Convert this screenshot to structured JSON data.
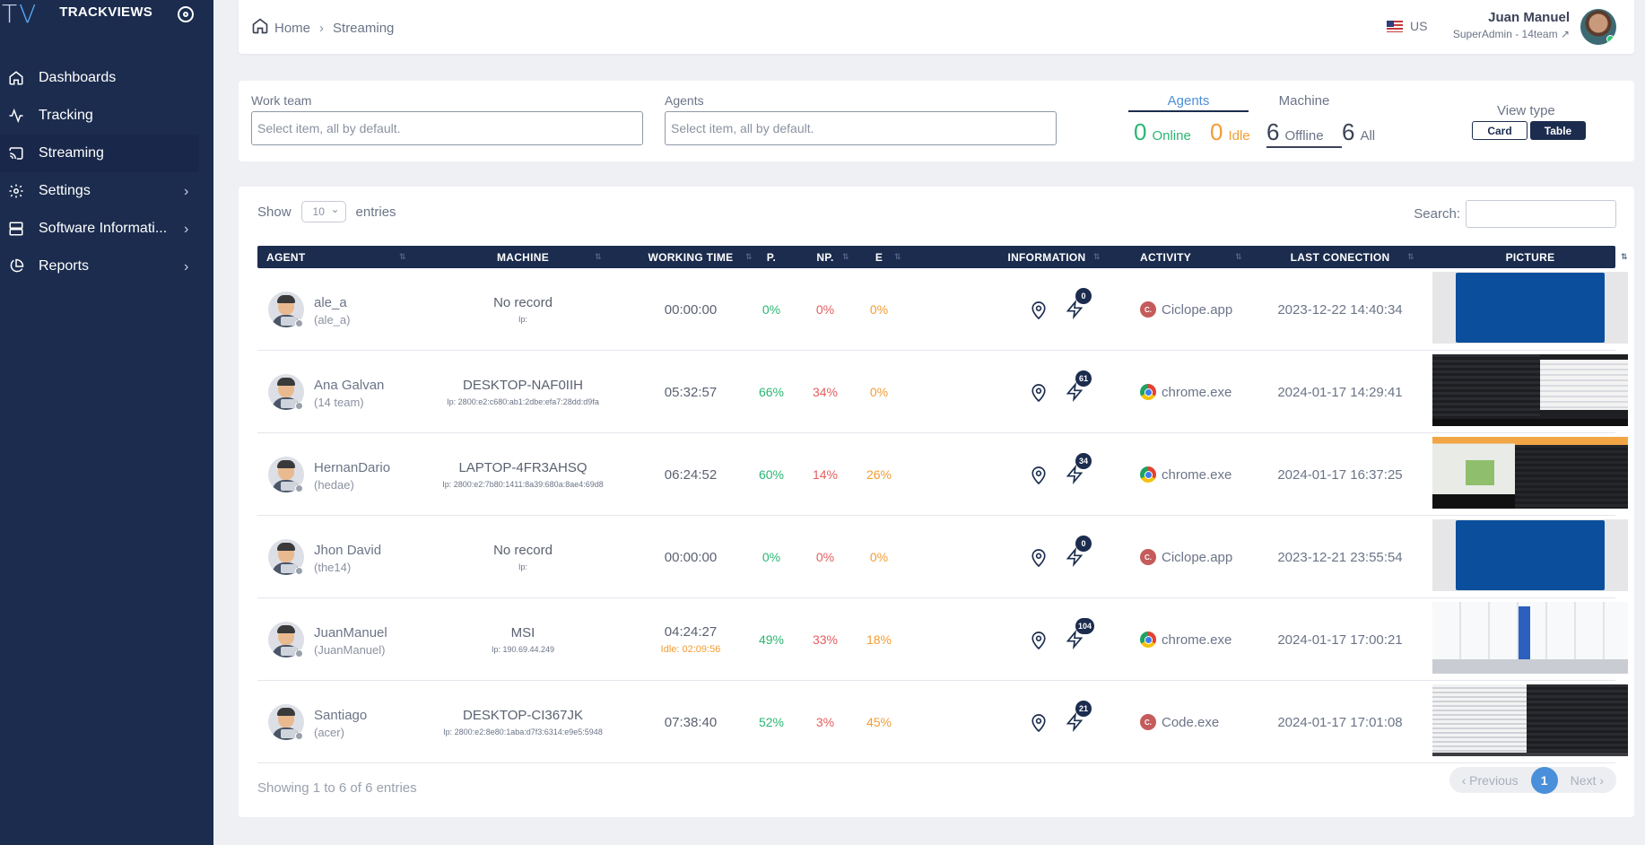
{
  "brand": {
    "logo_t": "T",
    "logo_v": "V",
    "name": "TRACKVIEWS"
  },
  "sidebar": {
    "items": [
      {
        "label": "Dashboards",
        "icon": "home-icon"
      },
      {
        "label": "Tracking",
        "icon": "activity-icon"
      },
      {
        "label": "Streaming",
        "icon": "cast-icon",
        "active": true
      },
      {
        "label": "Settings",
        "icon": "gear-icon",
        "has_children": true
      },
      {
        "label": "Software Informati...",
        "icon": "server-icon",
        "has_children": true
      },
      {
        "label": "Reports",
        "icon": "pie-chart-icon",
        "has_children": true
      }
    ]
  },
  "header": {
    "breadcrumb": {
      "home": "Home",
      "current": "Streaming"
    },
    "locale": "US",
    "user": {
      "name": "Juan Manuel",
      "role": "SuperAdmin - 14team"
    }
  },
  "filters": {
    "work_team": {
      "label": "Work team",
      "placeholder": "Select item, all by default."
    },
    "agents": {
      "label": "Agents",
      "placeholder": "Select item, all by default."
    },
    "tabs": {
      "agents": "Agents",
      "machine": "Machine"
    },
    "stats": {
      "online": {
        "value": "0",
        "label": "Online"
      },
      "idle": {
        "value": "0",
        "label": "Idle"
      },
      "offline": {
        "value": "6",
        "label": "Offline"
      },
      "all": {
        "value": "6",
        "label": "All"
      }
    },
    "view_type": {
      "label": "View type",
      "card": "Card",
      "table": "Table",
      "selected": "Table"
    }
  },
  "table": {
    "show_label": "Show",
    "entries_label": "entries",
    "page_length": "10",
    "search_label": "Search:",
    "columns": [
      "AGENT",
      "MACHINE",
      "WORKING TIME",
      "P.",
      "NP.",
      "E",
      "INFORMATION",
      "ACTIVITY",
      "LAST CONECTION",
      "PICTURE"
    ],
    "rows": [
      {
        "name": "ale_a",
        "user": "(ale_a)",
        "machine": "No record",
        "ip": "Ip:",
        "time": "00:00:00",
        "idle": "",
        "p": "0%",
        "np": "0%",
        "e": "0%",
        "badge": "0",
        "app": "Ciclope.app",
        "app_icon": "ciclope",
        "last": "2023-12-22 14:40:34",
        "picture": "blue"
      },
      {
        "name": "Ana Galvan",
        "user": "(14 team)",
        "machine": "DESKTOP-NAF0IIH",
        "ip": "Ip: 2800:e2:c680:ab1:2dbe:efa7:28dd:d9fa",
        "time": "05:32:57",
        "idle": "",
        "p": "66%",
        "np": "34%",
        "e": "0%",
        "badge": "61",
        "app": "chrome.exe",
        "app_icon": "chrome",
        "last": "2024-01-17 14:29:41",
        "picture": "dark"
      },
      {
        "name": "HernanDario",
        "user": "(hedae)",
        "machine": "LAPTOP-4FR3AHSQ",
        "ip": "Ip: 2800:e2:7b80:1411:8a39:680a:8ae4:69d8",
        "time": "06:24:52",
        "idle": "",
        "p": "60%",
        "np": "14%",
        "e": "26%",
        "badge": "34",
        "app": "chrome.exe",
        "app_icon": "chrome",
        "last": "2024-01-17 16:37:25",
        "picture": "mixed"
      },
      {
        "name": "Jhon David",
        "user": "(the14)",
        "machine": "No record",
        "ip": "Ip:",
        "time": "00:00:00",
        "idle": "",
        "p": "0%",
        "np": "0%",
        "e": "0%",
        "badge": "0",
        "app": "Ciclope.app",
        "app_icon": "ciclope",
        "last": "2023-12-21 23:55:54",
        "picture": "blue"
      },
      {
        "name": "JuanManuel",
        "user": "(JuanManuel)",
        "machine": "MSI",
        "ip": "Ip: 190.69.44.249",
        "time": "04:24:27",
        "idle": "Idle: 02:09:56",
        "p": "49%",
        "np": "33%",
        "e": "18%",
        "badge": "104",
        "app": "chrome.exe",
        "app_icon": "chrome",
        "last": "2024-01-17 17:00:21",
        "picture": "light"
      },
      {
        "name": "Santiago",
        "user": "(acer)",
        "machine": "DESKTOP-CI367JK",
        "ip": "Ip: 2800:e2:8e80:1aba:d7f3:6314:e9e5:5948",
        "time": "07:38:40",
        "idle": "",
        "p": "52%",
        "np": "3%",
        "e": "45%",
        "badge": "21",
        "app": "Code.exe",
        "app_icon": "ciclope",
        "last": "2024-01-17 17:01:08",
        "picture": "code"
      }
    ],
    "footer_info": "Showing 1 to 6 of 6 entries",
    "pager": {
      "previous": "Previous",
      "current": "1",
      "next": "Next"
    }
  },
  "colors": {
    "sidebar": "#1b2c4e",
    "accent": "#4a8fd9",
    "online": "#2bb673",
    "idle": "#f39c33",
    "np": "#e55d5d"
  }
}
